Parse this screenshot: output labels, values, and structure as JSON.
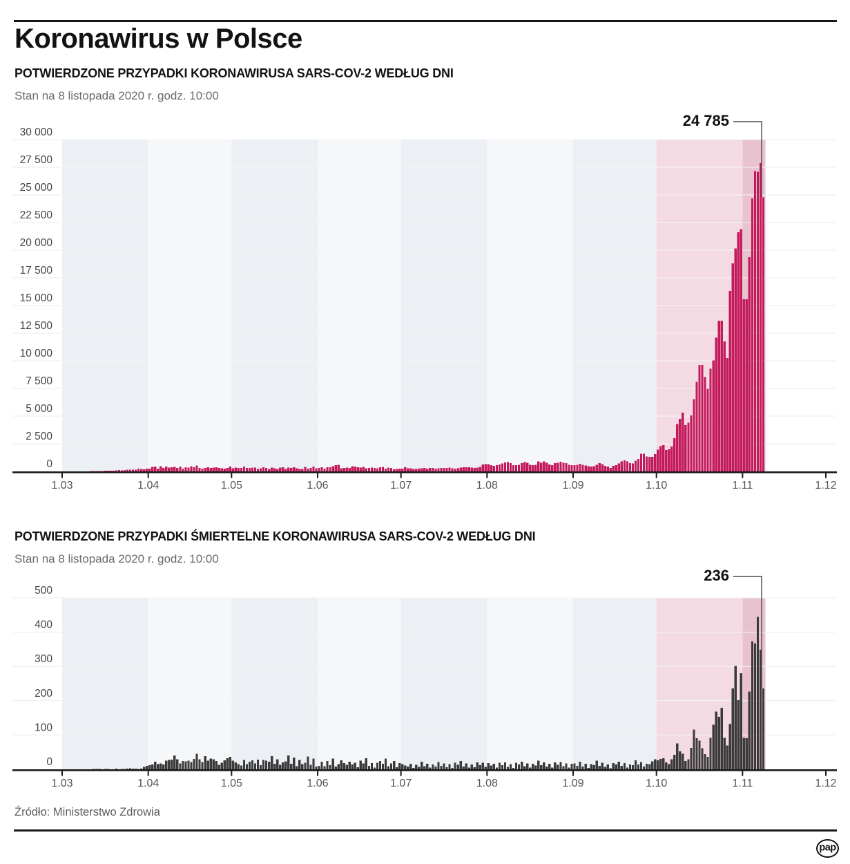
{
  "header": {
    "title": "Koronawirus w Polsce"
  },
  "footer": {
    "source": "Źródło: Ministerstwo Zdrowia",
    "logo": "pap"
  },
  "colors": {
    "cases_bar": "#c31a5c",
    "deaths_bar": "#3a3a3a",
    "band_gray": "#eceff3",
    "band_light": "#f6f7f9",
    "highlight_light": "#f4dae2",
    "highlight_dark": "#e8c2cf",
    "gridline": "#e7ebee",
    "axis": "#191919",
    "connector": "#4a4a4a",
    "tick_label": "#555555",
    "y_label": "#454545"
  },
  "chart_data": [
    {
      "type": "bar",
      "title": "POTWIERDZONE PRZYPADKI KORONAWIRUSA SARS-COV-2 WEDŁUG DNI",
      "subtitle": "Stan na 8 listopada 2020 r. godz. 10:00",
      "annotation": {
        "label": "24 785",
        "value": 24785
      },
      "ylim": [
        0,
        30000
      ],
      "y_tick_values": [
        0,
        2500,
        5000,
        7500,
        10000,
        12500,
        15000,
        17500,
        20000,
        22500,
        25000,
        27500,
        30000
      ],
      "y_tick_labels": [
        "0",
        "2 500",
        "5 000",
        "7 500",
        "10 000",
        "12 500",
        "15 000",
        "17 500",
        "20 000",
        "22 500",
        "25 000",
        "27 500",
        "30 000"
      ],
      "x_tick_labels": [
        "1.03",
        "1.04",
        "1.05",
        "1.06",
        "1.07",
        "1.08",
        "1.09",
        "1.10",
        "1.11",
        "1.12"
      ],
      "start_date": "2020-03-01",
      "highlight_from_day": 214,
      "highlight_dark_from_day": 245,
      "legend": "none",
      "grid": "on",
      "values": [
        0,
        0,
        0,
        1,
        1,
        4,
        2,
        5,
        11,
        8,
        20,
        19,
        36,
        35,
        21,
        52,
        61,
        49,
        68,
        79,
        111,
        98,
        115,
        152,
        163,
        170,
        158,
        249,
        224,
        193,
        256,
        243,
        392,
        437,
        244,
        475,
        311,
        435,
        357,
        380,
        401,
        318,
        423,
        260,
        380,
        336,
        461,
        363,
        545,
        306,
        263,
        306,
        376,
        313,
        342,
        381,
        305,
        285,
        263,
        316,
        437,
        292,
        358,
        306,
        311,
        425,
        314,
        307,
        349,
        345,
        231,
        273,
        372,
        322,
        224,
        332,
        272,
        234,
        356,
        383,
        226,
        344,
        321,
        387,
        272,
        220,
        214,
        399,
        262,
        306,
        432,
        268,
        305,
        380,
        238,
        371,
        384,
        456,
        575,
        599,
        294,
        318,
        344,
        321,
        470,
        440,
        379,
        355,
        407,
        295,
        314,
        330,
        300,
        273,
        386,
        407,
        263,
        359,
        325,
        193,
        219,
        256,
        239,
        371,
        269,
        277,
        231,
        219,
        257,
        284,
        324,
        257,
        305,
        299,
        239,
        271,
        316,
        321,
        325,
        335,
        277,
        251,
        271,
        342,
        380,
        367,
        386,
        339,
        319,
        343,
        407,
        615,
        657,
        658,
        548,
        511,
        568,
        640,
        726,
        809,
        843,
        744,
        562,
        551,
        602,
        748,
        831,
        771,
        595,
        552,
        605,
        903,
        777,
        899,
        793,
        623,
        571,
        737,
        786,
        887,
        786,
        758,
        606,
        552,
        550,
        580,
        691,
        594,
        538,
        463,
        436,
        454,
        589,
        757,
        649,
        502,
        432,
        316,
        512,
        554,
        711,
        907,
        1002,
        910,
        748,
        711,
        974,
        1136,
        1587,
        1584,
        1350,
        1306,
        1326,
        1552,
        1967,
        2292,
        2367,
        1934,
        2006,
        2236,
        3003,
        4280,
        4739,
        5300,
        4178,
        4394,
        5068,
        6526,
        8099,
        9622,
        9622,
        8536,
        7482,
        9291,
        10040,
        12107,
        13632,
        13628,
        11742,
        10241,
        16300,
        18820,
        20156,
        21629,
        21897,
        15563,
        15578,
        19364,
        24692,
        27143,
        27086,
        27875,
        24785
      ]
    },
    {
      "type": "bar",
      "title": "POTWIERDZONE PRZYPADKI ŚMIERTELNE KORONAWIRUSA SARS-COV-2 WEDŁUG DNI",
      "subtitle": "Stan na 8 listopada 2020 r. godz. 10:00",
      "annotation": {
        "label": "236",
        "value": 236
      },
      "ylim": [
        0,
        500
      ],
      "y_tick_values": [
        0,
        100,
        200,
        300,
        400,
        500
      ],
      "y_tick_labels": [
        "0",
        "100",
        "200",
        "300",
        "400",
        "500"
      ],
      "x_tick_labels": [
        "1.03",
        "1.04",
        "1.05",
        "1.06",
        "1.07",
        "1.08",
        "1.09",
        "1.10",
        "1.11",
        "1.12"
      ],
      "start_date": "2020-03-01",
      "highlight_from_day": 214,
      "highlight_dark_from_day": 245,
      "legend": "none",
      "grid": "on",
      "values": [
        0,
        0,
        0,
        0,
        0,
        0,
        0,
        0,
        0,
        0,
        0,
        1,
        1,
        1,
        0,
        1,
        1,
        0,
        0,
        2,
        0,
        1,
        1,
        2,
        3,
        2,
        2,
        1,
        2,
        7,
        10,
        12,
        14,
        22,
        15,
        17,
        14,
        25,
        27,
        28,
        40,
        29,
        17,
        24,
        23,
        25,
        21,
        30,
        45,
        29,
        21,
        38,
        25,
        31,
        29,
        24,
        13,
        19,
        26,
        32,
        36,
        25,
        20,
        15,
        11,
        27,
        15,
        22,
        26,
        17,
        28,
        12,
        27,
        25,
        22,
        38,
        16,
        29,
        13,
        20,
        23,
        40,
        16,
        34,
        9,
        27,
        15,
        19,
        37,
        13,
        31,
        8,
        10,
        22,
        9,
        24,
        12,
        31,
        8,
        15,
        26,
        18,
        13,
        22,
        14,
        19,
        6,
        25,
        17,
        32,
        10,
        18,
        5,
        19,
        24,
        16,
        31,
        9,
        17,
        24,
        6,
        18,
        15,
        11,
        8,
        16,
        4,
        13,
        7,
        22,
        9,
        16,
        5,
        14,
        8,
        21,
        10,
        17,
        6,
        15,
        4,
        19,
        13,
        24,
        8,
        17,
        5,
        14,
        6,
        20,
        12,
        19,
        7,
        18,
        11,
        16,
        5,
        19,
        12,
        20,
        7,
        15,
        4,
        19,
        14,
        22,
        9,
        17,
        5,
        16,
        11,
        25,
        12,
        20,
        8,
        16,
        5,
        20,
        13,
        21,
        9,
        17,
        5,
        16,
        17,
        10,
        22,
        8,
        16,
        4,
        15,
        12,
        25,
        10,
        19,
        7,
        14,
        3,
        18,
        14,
        22,
        10,
        18,
        5,
        14,
        12,
        26,
        14,
        21,
        8,
        16,
        15,
        23,
        29,
        26,
        30,
        32,
        20,
        15,
        29,
        42,
        76,
        52,
        45,
        24,
        29,
        63,
        116,
        91,
        84,
        62,
        44,
        36,
        92,
        130,
        168,
        153,
        179,
        92,
        70,
        132,
        236,
        301,
        202,
        280,
        92,
        91,
        227,
        373,
        367,
        445,
        349,
        236
      ]
    }
  ]
}
